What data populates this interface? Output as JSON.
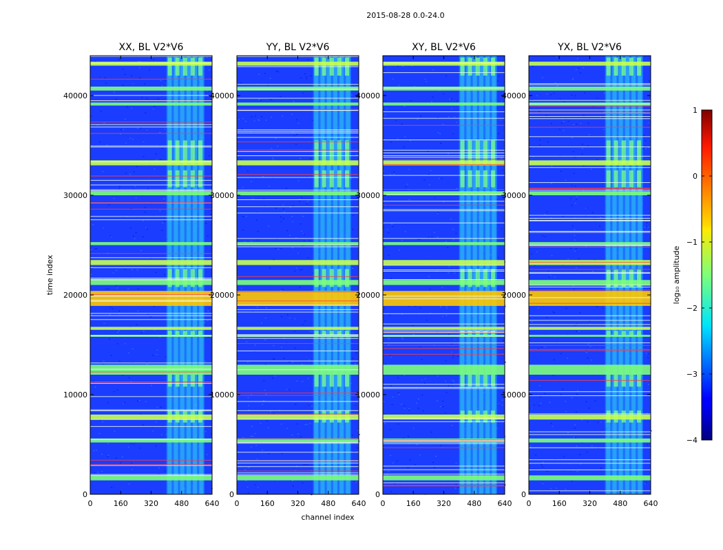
{
  "chart_data": {
    "type": "heatmap",
    "suptitle": "2015-08-28 0.0-24.0",
    "xlabel": "channel index",
    "ylabel": "time index",
    "xlim": [
      0,
      640
    ],
    "ylim": [
      0,
      44000
    ],
    "xticks": [
      0,
      160,
      320,
      480,
      640
    ],
    "yticks": [
      0,
      10000,
      20000,
      30000,
      40000
    ],
    "panels": [
      {
        "title": "XX, BL V2*V6"
      },
      {
        "title": "YY, BL V2*V6"
      },
      {
        "title": "XY, BL V2*V6"
      },
      {
        "title": "YX, BL V2*V6"
      }
    ],
    "colorbar": {
      "label": "log₁₀ amplitude",
      "min": -4,
      "max": 1,
      "ticks": [
        "1",
        "0",
        "−1",
        "−2",
        "−3",
        "−4"
      ],
      "colormap": "jet"
    },
    "rfi_channel_range": [
      400,
      600
    ],
    "bright_time_bands": [
      [
        43000,
        43400
      ],
      [
        40500,
        40900
      ],
      [
        39000,
        39300
      ],
      [
        33000,
        33500
      ],
      [
        30000,
        30400
      ],
      [
        25000,
        25300
      ],
      [
        23000,
        23500
      ],
      [
        21000,
        21500
      ],
      [
        18900,
        20400
      ],
      [
        16500,
        16800
      ],
      [
        15800,
        16000
      ],
      [
        12000,
        13000
      ],
      [
        7500,
        8000
      ],
      [
        5200,
        5600
      ],
      [
        1400,
        1900
      ]
    ]
  }
}
